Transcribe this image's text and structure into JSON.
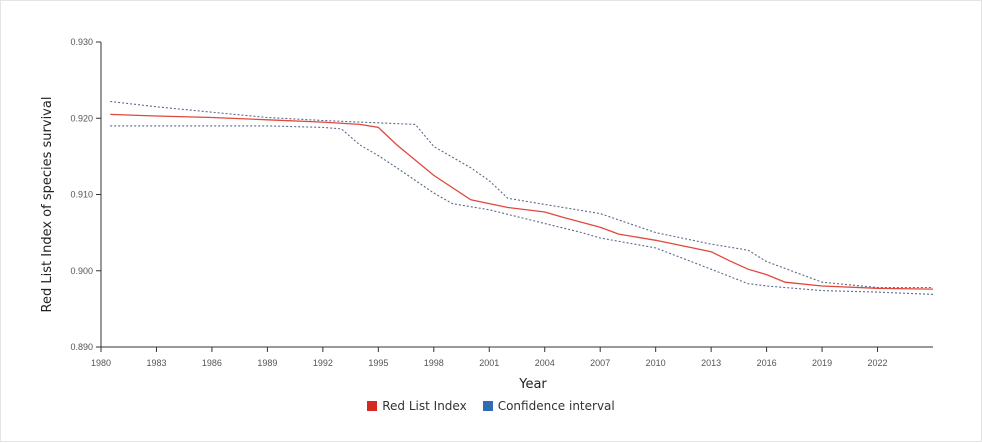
{
  "chart_data": {
    "type": "line",
    "title": "",
    "xlabel": "Year",
    "ylabel": "Red List Index of species survival",
    "xlim": [
      1980,
      2025
    ],
    "ylim": [
      0.89,
      0.93
    ],
    "x_ticks": [
      1980,
      1983,
      1986,
      1989,
      1992,
      1995,
      1998,
      2001,
      2004,
      2007,
      2010,
      2013,
      2016,
      2019,
      2022
    ],
    "y_ticks": [
      0.89,
      0.9,
      0.91,
      0.92,
      0.93
    ],
    "y_tick_labels": [
      "0.890",
      "0.900",
      "0.910",
      "0.920",
      "0.930"
    ],
    "grid": false,
    "legend_position": "bottom-center",
    "legend": [
      {
        "label": "Red List Index",
        "color": "#d42a20"
      },
      {
        "label": "Confidence interval",
        "color": "#2f6db3"
      }
    ],
    "series": [
      {
        "name": "Red List Index",
        "role": "main",
        "color": "#e0483c",
        "x": [
          1980.5,
          1983,
          1986,
          1989,
          1992,
          1994,
          1995,
          1996,
          1998,
          2000,
          2001,
          2002,
          2004,
          2005,
          2007,
          2008,
          2010,
          2012,
          2013,
          2014,
          2015,
          2016,
          2017,
          2019,
          2022,
          2025
        ],
        "y": [
          0.9205,
          0.9203,
          0.9201,
          0.9198,
          0.9195,
          0.9192,
          0.9188,
          0.9165,
          0.9125,
          0.9093,
          0.9088,
          0.9083,
          0.9077,
          0.907,
          0.9057,
          0.9048,
          0.904,
          0.903,
          0.9025,
          0.9013,
          0.9002,
          0.8995,
          0.8985,
          0.898,
          0.8977,
          0.8976
        ]
      },
      {
        "name": "Confidence interval",
        "role": "upper",
        "color": "#5a6a8a",
        "x": [
          1980.5,
          1983,
          1986,
          1989,
          1992,
          1994,
          1995,
          1996,
          1997,
          1998,
          2000,
          2001,
          2002,
          2004,
          2007,
          2010,
          2013,
          2015,
          2016,
          2019,
          2022,
          2025
        ],
        "y": [
          0.9222,
          0.9215,
          0.9208,
          0.9201,
          0.9197,
          0.9195,
          0.9194,
          0.9193,
          0.9192,
          0.9163,
          0.9135,
          0.9118,
          0.9095,
          0.9087,
          0.9075,
          0.905,
          0.9035,
          0.9027,
          0.9012,
          0.8985,
          0.8978,
          0.8978
        ]
      },
      {
        "name": "Confidence interval",
        "role": "lower",
        "color": "#5a6a8a",
        "x": [
          1980.5,
          1983,
          1986,
          1989,
          1992,
          1993,
          1994,
          1995,
          1996,
          1998,
          1999,
          2001,
          2003,
          2004,
          2006,
          2007,
          2010,
          2013,
          2015,
          2016,
          2019,
          2022,
          2025
        ],
        "y": [
          0.919,
          0.919,
          0.919,
          0.919,
          0.9188,
          0.9186,
          0.9165,
          0.9151,
          0.9135,
          0.9102,
          0.9088,
          0.908,
          0.9068,
          0.9062,
          0.905,
          0.9043,
          0.903,
          0.9002,
          0.8983,
          0.898,
          0.8974,
          0.8972,
          0.8969
        ]
      }
    ]
  }
}
